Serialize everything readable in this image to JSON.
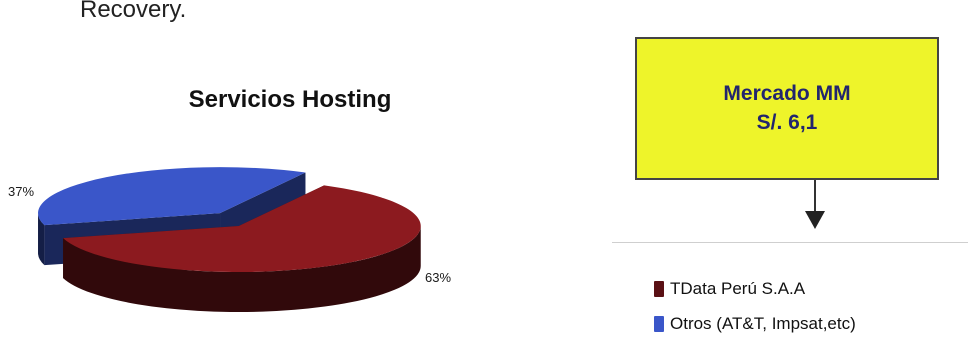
{
  "fragment_text": "Recovery.",
  "box": {
    "line1": "Mercado MM",
    "line2": "S/. 6,1"
  },
  "chart_data": {
    "type": "pie",
    "title": "Servicios Hosting",
    "series": [
      {
        "name": "TData Perú S.A.A",
        "value": 63,
        "label": "63%",
        "color": "#8c1a1f"
      },
      {
        "name": "Otros (AT&T, Impsat,etc)",
        "value": 37,
        "label": "37%",
        "color": "#3a56c9"
      }
    ],
    "style": "3d-exploded",
    "legend_position": "right"
  }
}
